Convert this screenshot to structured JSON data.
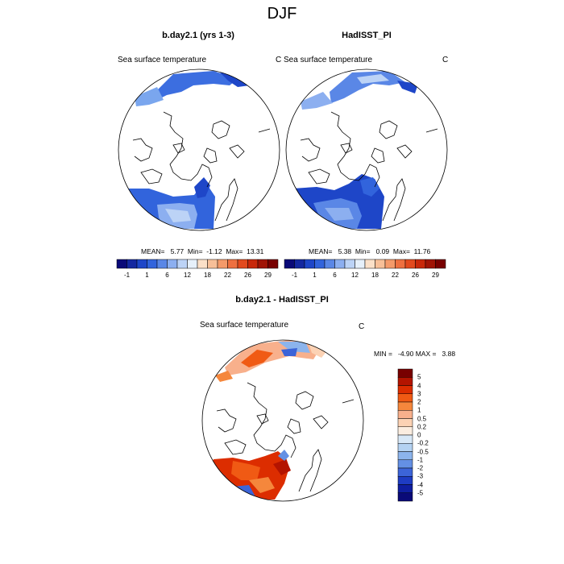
{
  "title": "DJF",
  "panels": {
    "left": {
      "title": "b.day2.1 (yrs 1-3)",
      "variable": "Sea surface temperature",
      "units": "C",
      "stats": "MEAN=   5.77  Min=  -1.12  Max=  13.31"
    },
    "right": {
      "title": "HadISST_PI",
      "variable": "Sea surface temperature",
      "units": "C",
      "stats": "MEAN=   5.38  Min=   0.09  Max=  11.76"
    },
    "diff": {
      "title": "b.day2.1 - HadISST_PI",
      "variable": "Sea surface temperature",
      "units": "C",
      "stats": "MIN =   -4.90 MAX =   3.88"
    }
  },
  "colorbar_abs": {
    "colors": [
      "#0a0a78",
      "#1428a0",
      "#1e46c8",
      "#3264dc",
      "#5a87e6",
      "#8caff0",
      "#bcd3f6",
      "#e6f0fa",
      "#fbe0c8",
      "#f7bf98",
      "#f49a6a",
      "#ee7040",
      "#e24a1e",
      "#c8280a",
      "#a01405",
      "#780000"
    ],
    "labels": [
      "-1",
      "1",
      "6",
      "12",
      "18",
      "22",
      "26",
      "29"
    ]
  },
  "colorbar_diff": {
    "colors": [
      "#780000",
      "#b41400",
      "#dc2d00",
      "#f05a14",
      "#f5873c",
      "#f8b08c",
      "#fcd2b4",
      "#fbede0",
      "#d8e8f7",
      "#b4d2f2",
      "#8cb4ec",
      "#6490e4",
      "#3c64d8",
      "#1e3cc3",
      "#0f1ea0",
      "#0a0a78"
    ],
    "labels": [
      "5",
      "4",
      "3",
      "2",
      "1",
      "0.5",
      "0.2",
      "0",
      "-0.2",
      "-0.5",
      "-1",
      "-2",
      "-3",
      "-4",
      "-5"
    ]
  },
  "palette": {
    "land_outline": "#000000",
    "ocean_empty": "#ffffff"
  }
}
